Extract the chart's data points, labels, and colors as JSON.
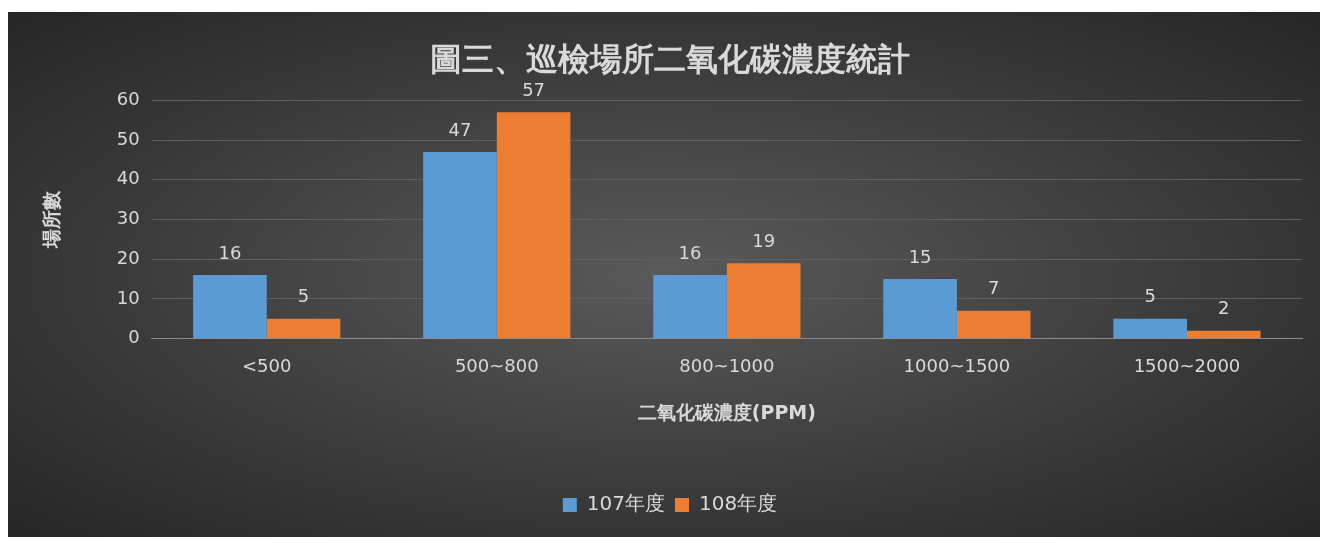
{
  "chart_data": {
    "type": "bar",
    "title": "圖三、巡檢場所二氧化碳濃度統計",
    "xlabel": "二氧化碳濃度(PPM)",
    "ylabel": "場所數",
    "categories": [
      "<500",
      "500~800",
      "800~1000",
      "1000~1500",
      "1500~2000"
    ],
    "series": [
      {
        "name": "107年度",
        "color": "#5b9bd5",
        "values": [
          16,
          47,
          16,
          15,
          5
        ]
      },
      {
        "name": "108年度",
        "color": "#ed7d31",
        "values": [
          5,
          57,
          19,
          7,
          2
        ]
      }
    ],
    "ylim": [
      0,
      60
    ],
    "yticks": [
      0,
      10,
      20,
      30,
      40,
      50,
      60
    ],
    "grid": "y",
    "legend": "bottom",
    "data_labels": true
  }
}
